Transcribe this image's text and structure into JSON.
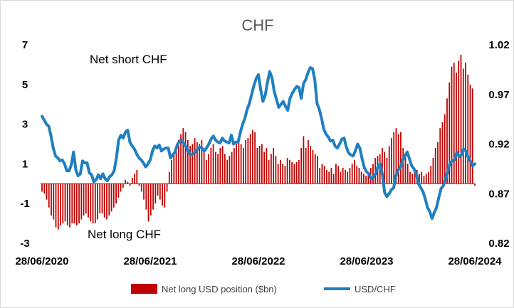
{
  "chart_data": {
    "type": "bar+line",
    "title": "CHF",
    "x_tick_labels": [
      "28/06/2020",
      "28/06/2021",
      "28/06/2022",
      "28/06/2023",
      "28/06/2024"
    ],
    "x_range": [
      "2020-06-28",
      "2024-06-28"
    ],
    "y_left": {
      "range": [
        -3,
        7
      ],
      "ticks": [
        "-3",
        "-1",
        "1",
        "3",
        "5",
        "7"
      ]
    },
    "y_right": {
      "range": [
        0.82,
        1.02
      ],
      "ticks": [
        "0.82",
        "0.87",
        "0.92",
        "0.97",
        "1.02"
      ]
    },
    "annotations": {
      "top": "Net short CHF",
      "bottom": "Net long CHF"
    },
    "legend": {
      "position": "bottom",
      "bar_label": "Net long USD position ($bn)",
      "line_label": "USD/CHF"
    },
    "colors": {
      "bar": "#c00000",
      "line": "#1f7fbf",
      "title": "#595959"
    },
    "series": [
      {
        "name": "Net long USD position ($bn)",
        "axis": "left",
        "kind": "bar",
        "values": [
          -0.4,
          -0.5,
          -0.8,
          -1.2,
          -1.6,
          -1.8,
          -2.2,
          -2.3,
          -2.1,
          -2.0,
          -1.9,
          -2.1,
          -2.2,
          -2.0,
          -2.0,
          -2.1,
          -2.0,
          -1.8,
          -1.6,
          -1.5,
          -1.7,
          -1.9,
          -2.0,
          -2.0,
          -1.8,
          -1.5,
          -1.5,
          -1.7,
          -1.8,
          -1.6,
          -1.4,
          -1.2,
          -1.0,
          -0.7,
          -0.4,
          -0.2,
          0.2,
          0.1,
          -0.1,
          0.3,
          0.5,
          0.7,
          -0.1,
          -0.4,
          -0.8,
          -1.3,
          -1.9,
          -1.6,
          -1.3,
          -1.0,
          -0.6,
          -0.8,
          -1.1,
          -1.2,
          -0.4,
          0.6,
          1.2,
          1.6,
          1.8,
          2.2,
          2.5,
          2.8,
          2.6,
          2.2,
          1.9,
          2.0,
          2.3,
          2.1,
          2.0,
          2.2,
          1.6,
          1.2,
          1.5,
          1.8,
          2.0,
          1.6,
          1.5,
          1.8,
          1.9,
          1.5,
          1.2,
          1.4,
          1.6,
          1.8,
          2.0,
          2.1,
          2.0,
          1.8,
          2.2,
          2.3,
          2.5,
          2.7,
          2.6,
          1.8,
          1.9,
          2.0,
          1.6,
          1.8,
          1.2,
          1.5,
          1.8,
          1.4,
          1.0,
          1.2,
          1.0,
          0.9,
          1.3,
          1.2,
          1.1,
          1.0,
          1.1,
          1.2,
          1.8,
          2.4,
          1.8,
          2.2,
          1.9,
          1.7,
          1.5,
          1.4,
          0.8,
          1.0,
          0.9,
          0.7,
          0.6,
          0.8,
          0.5,
          1.0,
          0.9,
          0.6,
          0.8,
          0.7,
          0.6,
          0.8,
          1.0,
          1.2,
          0.9,
          0.8,
          0.6,
          0.5,
          0.4,
          0.6,
          0.8,
          1.0,
          1.3,
          1.4,
          1.5,
          1.8,
          1.6,
          1.3,
          1.9,
          2.3,
          2.6,
          2.8,
          2.5,
          2.6,
          1.8,
          1.4,
          1.0,
          0.6,
          0.5,
          0.8,
          0.7,
          0.5,
          0.6,
          0.4,
          0.5,
          0.6,
          0.9,
          1.3,
          1.8,
          2.1,
          2.8,
          3.1,
          3.5,
          4.3,
          5.1,
          5.9,
          6.1,
          5.6,
          6.2,
          6.5,
          5.8,
          6.1,
          5.5,
          5.0,
          4.8,
          -0.1
        ]
      },
      {
        "name": "USD/CHF",
        "axis": "right",
        "kind": "line",
        "values": [
          0.948,
          0.944,
          0.94,
          0.938,
          0.928,
          0.916,
          0.908,
          0.906,
          0.903,
          0.904,
          0.9,
          0.893,
          0.893,
          0.899,
          0.912,
          0.894,
          0.888,
          0.89,
          0.903,
          0.901,
          0.901,
          0.891,
          0.889,
          0.882,
          0.884,
          0.889,
          0.885,
          0.89,
          0.885,
          0.883,
          0.887,
          0.889,
          0.893,
          0.906,
          0.924,
          0.929,
          0.926,
          0.932,
          0.934,
          0.922,
          0.918,
          0.915,
          0.91,
          0.906,
          0.904,
          0.901,
          0.897,
          0.9,
          0.904,
          0.913,
          0.918,
          0.916,
          0.919,
          0.913,
          0.915,
          0.916,
          0.916,
          0.906,
          0.909,
          0.912,
          0.919,
          0.923,
          0.924,
          0.92,
          0.917,
          0.912,
          0.909,
          0.91,
          0.912,
          0.915,
          0.917,
          0.916,
          0.913,
          0.916,
          0.92,
          0.925,
          0.928,
          0.924,
          0.922,
          0.921,
          0.926,
          0.923,
          0.922,
          0.921,
          0.929,
          0.92,
          0.922,
          0.922,
          0.932,
          0.94,
          0.946,
          0.955,
          0.961,
          0.97,
          0.979,
          0.986,
          0.99,
          0.975,
          0.963,
          0.969,
          0.982,
          0.993,
          0.987,
          0.973,
          0.965,
          0.957,
          0.96,
          0.963,
          0.958,
          0.954,
          0.966,
          0.971,
          0.975,
          0.978,
          0.977,
          0.966,
          0.981,
          0.985,
          0.992,
          0.997,
          0.996,
          0.985,
          0.961,
          0.955,
          0.946,
          0.935,
          0.93,
          0.927,
          0.923,
          0.924,
          0.918,
          0.916,
          0.92,
          0.925,
          0.926,
          0.917,
          0.911,
          0.909,
          0.908,
          0.913,
          0.92,
          0.916,
          0.905,
          0.896,
          0.892,
          0.89,
          0.885,
          0.887,
          0.89,
          0.897,
          0.9,
          0.889,
          0.871,
          0.867,
          0.87,
          0.874,
          0.876,
          0.888,
          0.894,
          0.896,
          0.904,
          0.908,
          0.912,
          0.905,
          0.898,
          0.895,
          0.89,
          0.88,
          0.876,
          0.872,
          0.865,
          0.856,
          0.852,
          0.845,
          0.851,
          0.856,
          0.866,
          0.875,
          0.878,
          0.885,
          0.893,
          0.901,
          0.903,
          0.904,
          0.912,
          0.907,
          0.909,
          0.915,
          0.913,
          0.907,
          0.903,
          0.898,
          0.9
        ]
      }
    ]
  }
}
